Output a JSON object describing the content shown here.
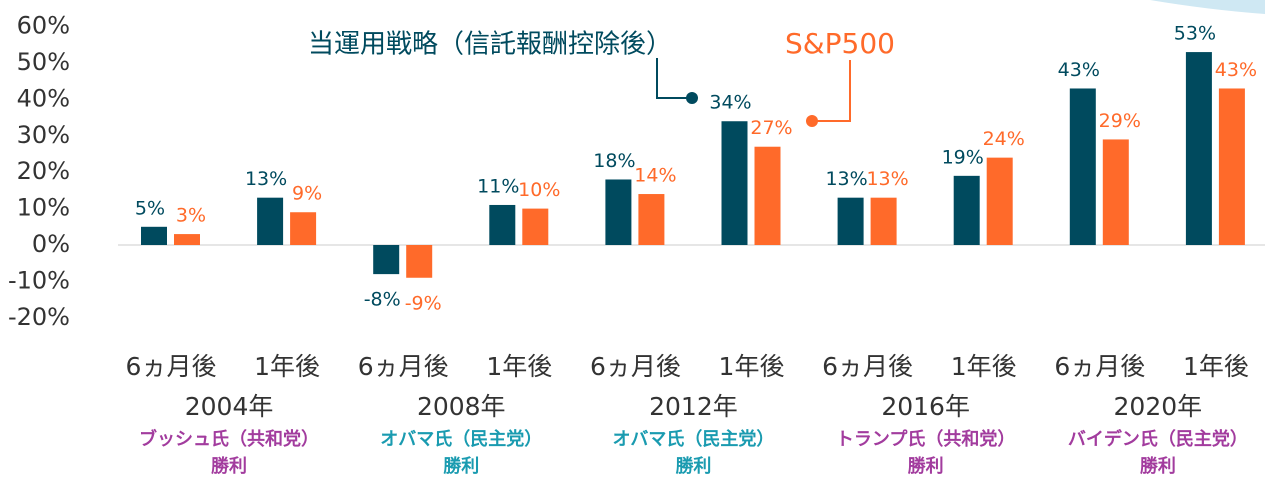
{
  "chart_data": {
    "type": "bar",
    "categories": [
      "6ヵ月後",
      "1年後",
      "6ヵ月後",
      "1年後",
      "6ヵ月後",
      "1年後",
      "6ヵ月後",
      "1年後",
      "6ヵ月後",
      "1年後"
    ],
    "series": [
      {
        "name": "当運用戦略（信託報酬控除後）",
        "color": "#004a5e",
        "values": [
          5,
          13,
          -8,
          11,
          18,
          34,
          13,
          19,
          43,
          53
        ],
        "value_labels": [
          "5%",
          "13%",
          "-8%",
          "11%",
          "18%",
          "34%",
          "13%",
          "19%",
          "43%",
          "53%"
        ]
      },
      {
        "name": "S&P500",
        "color": "#ff6a2a",
        "values": [
          3,
          9,
          -9,
          10,
          14,
          27,
          13,
          24,
          29,
          43
        ],
        "value_labels": [
          "3%",
          "9%",
          "-9%",
          "10%",
          "14%",
          "27%",
          "13%",
          "24%",
          "29%",
          "43%"
        ]
      }
    ],
    "groups": [
      {
        "year": "2004年",
        "winner": "ブッシュ氏（共和党）",
        "result": "勝利",
        "color": "#a23c9e"
      },
      {
        "year": "2008年",
        "winner": "オバマ氏（民主党）",
        "result": "勝利",
        "color": "#1a9bb0"
      },
      {
        "year": "2012年",
        "winner": "オバマ氏（民主党）",
        "result": "勝利",
        "color": "#1a9bb0"
      },
      {
        "year": "2016年",
        "winner": "トランプ氏（共和党）",
        "result": "勝利",
        "color": "#a23c9e"
      },
      {
        "year": "2020年",
        "winner": "バイデン氏（民主党）",
        "result": "勝利",
        "color": "#a23c9e"
      }
    ],
    "ylim": [
      -20,
      60
    ],
    "yticks": [
      {
        "value": -20,
        "label": "-20%"
      },
      {
        "value": -10,
        "label": "-10%"
      },
      {
        "value": 0,
        "label": "0%"
      },
      {
        "value": 10,
        "label": "10%"
      },
      {
        "value": 20,
        "label": "20%"
      },
      {
        "value": 30,
        "label": "30%"
      },
      {
        "value": 40,
        "label": "40%"
      },
      {
        "value": 50,
        "label": "50%"
      },
      {
        "value": 60,
        "label": "60%"
      }
    ]
  }
}
